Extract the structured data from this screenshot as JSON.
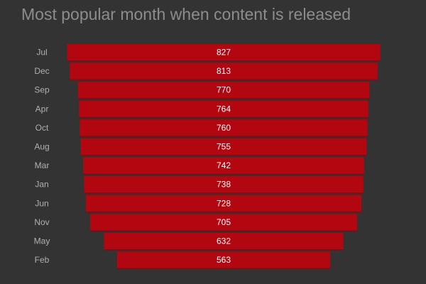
{
  "chart_data": {
    "type": "bar",
    "orientation": "horizontal-centered",
    "title": "Most popular month when content is released",
    "categories": [
      "Jul",
      "Dec",
      "Sep",
      "Apr",
      "Oct",
      "Aug",
      "Mar",
      "Jan",
      "Jun",
      "Nov",
      "May",
      "Feb"
    ],
    "values": [
      827,
      813,
      770,
      764,
      760,
      755,
      742,
      738,
      728,
      705,
      632,
      563
    ],
    "value_labels": [
      "827",
      "813",
      "770",
      "764",
      "760",
      "755",
      "742",
      "738",
      "728",
      "705",
      "632",
      "563"
    ],
    "xlabel": "",
    "ylabel": "",
    "grid": false,
    "legend": "none",
    "colors": {
      "bar": "#b20710",
      "bar_edge": "#7a1016",
      "background": "#333333",
      "title": "#8c8c8c",
      "category_text": "#b0b0b0",
      "value_text": "#ffffff"
    }
  }
}
